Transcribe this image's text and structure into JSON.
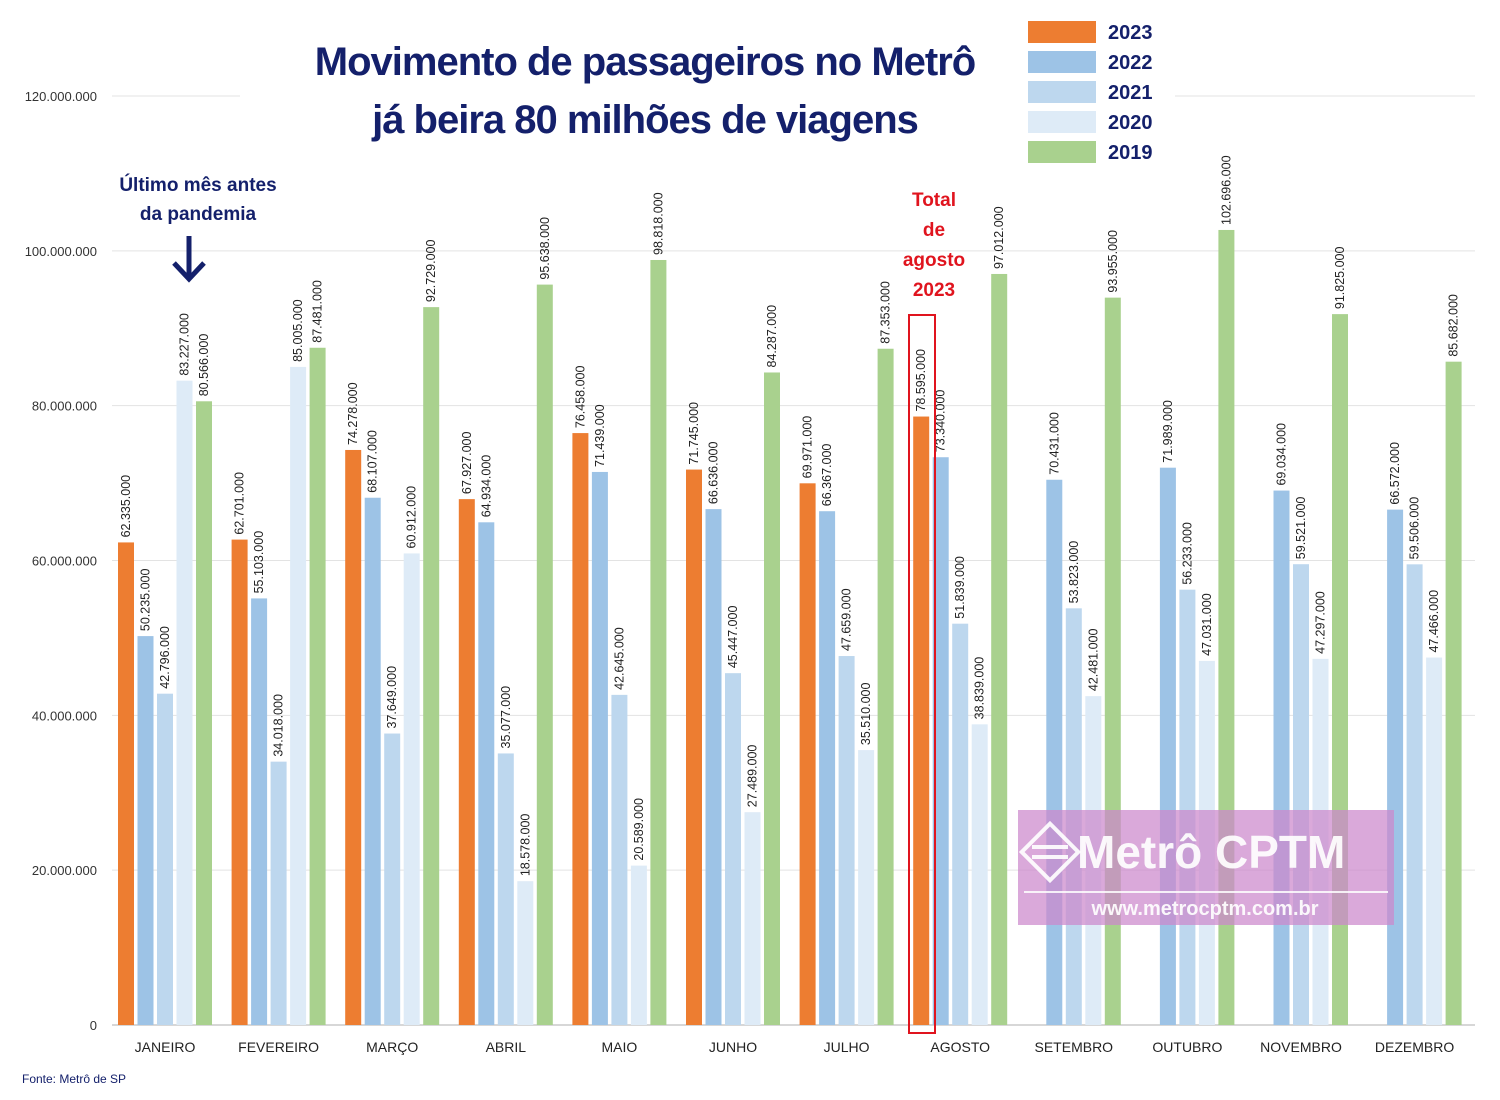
{
  "chart_data": {
    "type": "bar",
    "title": [
      "Movimento de passageiros no Metrô",
      "já beira 80 milhões de viagens"
    ],
    "categories": [
      "JANEIRO",
      "FEVEREIRO",
      "MARÇO",
      "ABRIL",
      "MAIO",
      "JUNHO",
      "JULHO",
      "AGOSTO",
      "SETEMBRO",
      "OUTUBRO",
      "NOVEMBRO",
      "DEZEMBRO"
    ],
    "series": [
      {
        "name": "2023",
        "color": "#ed7d31",
        "values": [
          62335000,
          62701000,
          74278000,
          67927000,
          76458000,
          71745000,
          69971000,
          78595000,
          null,
          null,
          null,
          null
        ],
        "labels": [
          "62.335.000",
          "62.701.000",
          "74.278.000",
          "67.927.000",
          "76.458.000",
          "71.745.000",
          "69.971.000",
          "78.595.000",
          "",
          "",
          "",
          ""
        ]
      },
      {
        "name": "2022",
        "color": "#9dc3e6",
        "values": [
          50235000,
          55103000,
          68107000,
          64934000,
          71439000,
          66636000,
          66367000,
          73340000,
          70431000,
          71989000,
          69034000,
          66572000
        ],
        "labels": [
          "50.235.000",
          "55.103.000",
          "68.107.000",
          "64.934.000",
          "71.439.000",
          "66.636.000",
          "66.367.000",
          "73.340.000",
          "70.431.000",
          "71.989.000",
          "69.034.000",
          "66.572.000"
        ]
      },
      {
        "name": "2021",
        "color": "#bdd7ee",
        "values": [
          42796000,
          34018000,
          37649000,
          35077000,
          42645000,
          45447000,
          47659000,
          51839000,
          53823000,
          56233000,
          59521000,
          59506000
        ],
        "labels": [
          "42.796.000",
          "34.018.000",
          "37.649.000",
          "35.077.000",
          "42.645.000",
          "45.447.000",
          "47.659.000",
          "51.839.000",
          "53.823.000",
          "56.233.000",
          "59.521.000",
          "59.506.000"
        ]
      },
      {
        "name": "2020",
        "color": "#deebf7",
        "values": [
          83227000,
          85005000,
          60912000,
          18578000,
          20589000,
          27489000,
          35510000,
          38839000,
          42481000,
          47031000,
          47297000,
          47466000
        ],
        "labels": [
          "83.227.000",
          "85.005.000",
          "60.912.000",
          "18.578.000",
          "20.589.000",
          "27.489.000",
          "35.510.000",
          "38.839.000",
          "42.481.000",
          "47.031.000",
          "47.297.000",
          "47.466.000"
        ]
      },
      {
        "name": "2019",
        "color": "#a9d18e",
        "values": [
          80566000,
          87481000,
          92729000,
          95638000,
          98818000,
          84287000,
          87353000,
          97012000,
          93955000,
          102696000,
          91825000,
          85682000
        ],
        "labels": [
          "80.566.000",
          "87.481.000",
          "92.729.000",
          "95.638.000",
          "98.818.000",
          "84.287.000",
          "87.353.000",
          "97.012.000",
          "93.955.000",
          "102.696.000",
          "91.825.000",
          "85.682.000"
        ]
      }
    ],
    "ylim": [
      0,
      120000000
    ],
    "yticks": [
      0,
      20000000,
      40000000,
      60000000,
      80000000,
      100000000,
      120000000
    ],
    "ytick_labels": [
      "0",
      "20.000.000",
      "40.000.000",
      "60.000.000",
      "80.000.000",
      "100.000.000",
      "120.000.000"
    ],
    "grid": true,
    "legend_position": "top-right",
    "annotations": {
      "pandemic": [
        "Último mês antes",
        "da pandemia"
      ],
      "highlight": [
        "Total",
        "de",
        "agosto",
        "2023"
      ],
      "highlight_color": "#e0141e"
    },
    "source": "Fonte: Metrô de SP"
  },
  "watermark": {
    "name": "Metrô CPTM",
    "url": "www.metrocptm.com.br",
    "color": "#cc88cc"
  }
}
